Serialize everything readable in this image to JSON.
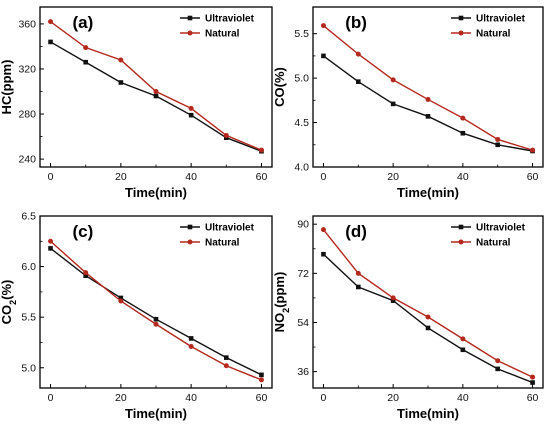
{
  "chart_data": [
    {
      "type": "line",
      "panel_label": "(a)",
      "xlabel": "Time(min)",
      "ylabel": "HC(ppm)",
      "xlim": [
        -3,
        63
      ],
      "ylim": [
        233,
        375
      ],
      "xticks": [
        0,
        20,
        40,
        60
      ],
      "yticks": [
        240,
        280,
        320,
        360
      ],
      "ytick_labels": [
        "240",
        "280",
        "320",
        "360"
      ],
      "x": [
        0,
        10,
        20,
        30,
        40,
        50,
        60
      ],
      "legend_position": "top-right",
      "series": [
        {
          "name": "Ultraviolet",
          "color": "#111111",
          "marker": "square",
          "values": [
            344,
            326,
            308,
            296,
            279,
            259,
            247
          ]
        },
        {
          "name": "Natural",
          "color": "#b5281d",
          "marker": "circle",
          "values": [
            362,
            339,
            328,
            300,
            285,
            261,
            248
          ]
        }
      ]
    },
    {
      "type": "line",
      "panel_label": "(b)",
      "xlabel": "Time(min)",
      "ylabel": "CO(%)",
      "xlim": [
        -3,
        63
      ],
      "ylim": [
        4.0,
        5.8
      ],
      "xticks": [
        0,
        20,
        40,
        60
      ],
      "yticks": [
        4.0,
        4.5,
        5.0,
        5.5
      ],
      "ytick_labels": [
        "4.0",
        "4.5",
        "5.0",
        "5.5"
      ],
      "x": [
        0,
        10,
        20,
        30,
        40,
        50,
        60
      ],
      "legend_position": "top-right",
      "series": [
        {
          "name": "Ultraviolet",
          "color": "#111111",
          "marker": "square",
          "values": [
            5.25,
            4.96,
            4.71,
            4.57,
            4.38,
            4.25,
            4.18
          ]
        },
        {
          "name": "Natural",
          "color": "#b5281d",
          "marker": "circle",
          "values": [
            5.59,
            5.27,
            4.98,
            4.76,
            4.55,
            4.31,
            4.19
          ]
        }
      ]
    },
    {
      "type": "line",
      "panel_label": "(c)",
      "xlabel": "Time(min)",
      "ylabel": "CO₂(%)",
      "xlim": [
        -3,
        63
      ],
      "ylim": [
        4.8,
        6.5
      ],
      "xticks": [
        0,
        20,
        40,
        60
      ],
      "yticks": [
        5.0,
        5.5,
        6.0,
        6.5
      ],
      "ytick_labels": [
        "5.0",
        "5.5",
        "6.0",
        "6.5"
      ],
      "x": [
        0,
        10,
        20,
        30,
        40,
        50,
        60
      ],
      "legend_position": "top-right",
      "series": [
        {
          "name": "Ultraviolet",
          "color": "#111111",
          "marker": "square",
          "values": [
            6.18,
            5.91,
            5.69,
            5.48,
            5.29,
            5.1,
            4.93
          ]
        },
        {
          "name": "Natural",
          "color": "#b5281d",
          "marker": "circle",
          "values": [
            6.25,
            5.94,
            5.66,
            5.43,
            5.21,
            5.02,
            4.88
          ]
        }
      ]
    },
    {
      "type": "line",
      "panel_label": "(d)",
      "xlabel": "Time(min)",
      "ylabel": "NO₂(ppm)",
      "xlim": [
        -3,
        63
      ],
      "ylim": [
        30,
        93
      ],
      "xticks": [
        0,
        20,
        40,
        60
      ],
      "yticks": [
        36,
        54,
        72,
        90
      ],
      "ytick_labels": [
        "36",
        "54",
        "72",
        "90"
      ],
      "x": [
        0,
        10,
        20,
        30,
        40,
        50,
        60
      ],
      "legend_position": "top-right",
      "series": [
        {
          "name": "Ultraviolet",
          "color": "#111111",
          "marker": "square",
          "values": [
            79,
            67,
            62,
            52,
            44,
            37,
            32
          ]
        },
        {
          "name": "Natural",
          "color": "#b5281d",
          "marker": "circle",
          "values": [
            88,
            72,
            63,
            56,
            48,
            40,
            34
          ]
        }
      ]
    }
  ]
}
